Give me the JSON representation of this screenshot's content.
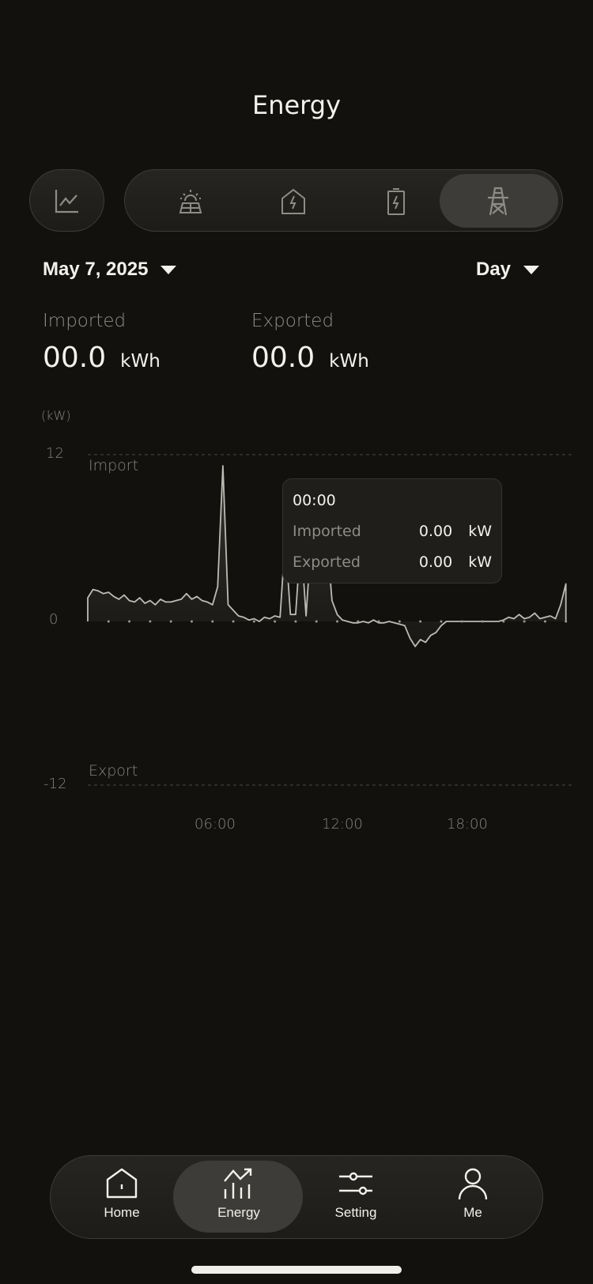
{
  "header": {
    "title": "Energy"
  },
  "mode_tabs": {
    "chart_icon": "line-chart-icon",
    "items": [
      {
        "name": "solar",
        "icon": "solar-panel-icon"
      },
      {
        "name": "home",
        "icon": "home-bolt-icon"
      },
      {
        "name": "battery",
        "icon": "battery-bolt-icon"
      },
      {
        "name": "grid",
        "icon": "power-tower-icon",
        "active": true
      }
    ]
  },
  "filters": {
    "date": "May 7, 2025",
    "period": "Day"
  },
  "stats": {
    "imported": {
      "label": "Imported",
      "value": "00.0",
      "unit": "kWh"
    },
    "exported": {
      "label": "Exported",
      "value": "00.0",
      "unit": "kWh"
    }
  },
  "tooltip": {
    "time": "00:00",
    "rows": [
      {
        "label": "Imported",
        "value": "0.00",
        "unit": "kW"
      },
      {
        "label": "Exported",
        "value": "0.00",
        "unit": "kW"
      }
    ]
  },
  "colors": {
    "background": "#12110e",
    "line": "#bdbbb5",
    "active": "#3d3c38"
  },
  "chart_data": {
    "type": "area",
    "unit_label": "(kW)",
    "ylim": [
      -12,
      12
    ],
    "yticks": [
      "12",
      "0",
      "-12"
    ],
    "region_labels": {
      "top": "Import",
      "bottom": "Export"
    },
    "xlim": [
      "00:00",
      "24:00"
    ],
    "xticks": [
      "06:00",
      "12:00",
      "18:00"
    ],
    "grid": "dashed lines at 12 and -12",
    "x": [
      "00:00",
      "00:15",
      "00:30",
      "00:45",
      "01:00",
      "01:15",
      "01:30",
      "01:45",
      "02:00",
      "02:15",
      "02:30",
      "02:45",
      "03:00",
      "03:15",
      "03:30",
      "03:45",
      "04:00",
      "04:15",
      "04:30",
      "04:45",
      "05:00",
      "05:15",
      "05:30",
      "05:45",
      "06:00",
      "06:15",
      "06:30",
      "06:45",
      "07:00",
      "07:15",
      "07:30",
      "07:45",
      "08:00",
      "08:15",
      "08:30",
      "08:45",
      "09:00",
      "09:15",
      "09:30",
      "09:45",
      "10:00",
      "10:15",
      "10:30",
      "10:45",
      "11:00",
      "11:15",
      "11:30",
      "11:45",
      "12:00",
      "12:15",
      "12:30",
      "12:45",
      "13:00",
      "13:15",
      "13:30",
      "13:45",
      "14:00",
      "14:15",
      "14:30",
      "14:45",
      "15:00",
      "15:15",
      "15:30",
      "15:45",
      "16:00",
      "16:15",
      "16:30",
      "16:45",
      "17:00",
      "17:15",
      "17:30",
      "17:45",
      "18:00",
      "18:15",
      "18:30",
      "18:45",
      "19:00",
      "19:15",
      "19:30",
      "19:45",
      "20:00",
      "20:15",
      "20:30",
      "20:45",
      "21:00",
      "21:15",
      "21:30",
      "21:45",
      "22:00",
      "22:15",
      "22:30",
      "22:45",
      "23:00"
    ],
    "y": [
      1.7,
      2.3,
      2.2,
      2.0,
      2.1,
      1.8,
      1.6,
      1.9,
      1.5,
      1.4,
      1.7,
      1.3,
      1.5,
      1.2,
      1.6,
      1.4,
      1.4,
      1.5,
      1.6,
      2.0,
      1.6,
      1.8,
      1.5,
      1.4,
      1.2,
      2.5,
      11.2,
      1.2,
      0.8,
      0.4,
      0.3,
      0.1,
      0.2,
      0.0,
      0.3,
      0.2,
      0.4,
      0.3,
      6.0,
      0.5,
      0.5,
      6.0,
      0.4,
      6.0,
      6.0,
      6.0,
      6.0,
      1.5,
      0.5,
      0.1,
      0.0,
      -0.1,
      -0.1,
      0.0,
      -0.1,
      0.1,
      -0.1,
      -0.1,
      0.0,
      -0.1,
      -0.2,
      -0.3,
      -1.2,
      -1.8,
      -1.3,
      -1.5,
      -1.0,
      -0.8,
      -0.3,
      0,
      0,
      0,
      0,
      0,
      0,
      0,
      0,
      0,
      0,
      0,
      0.1,
      0.3,
      0.2,
      0.5,
      0.2,
      0.3,
      0.6,
      0.2,
      0.3,
      0.4,
      0.2,
      1.2,
      2.7
    ]
  },
  "nav": {
    "items": [
      {
        "label": "Home",
        "icon": "home-icon"
      },
      {
        "label": "Energy",
        "icon": "energy-chart-icon",
        "active": true
      },
      {
        "label": "Setting",
        "icon": "sliders-icon"
      },
      {
        "label": "Me",
        "icon": "user-icon"
      }
    ]
  }
}
